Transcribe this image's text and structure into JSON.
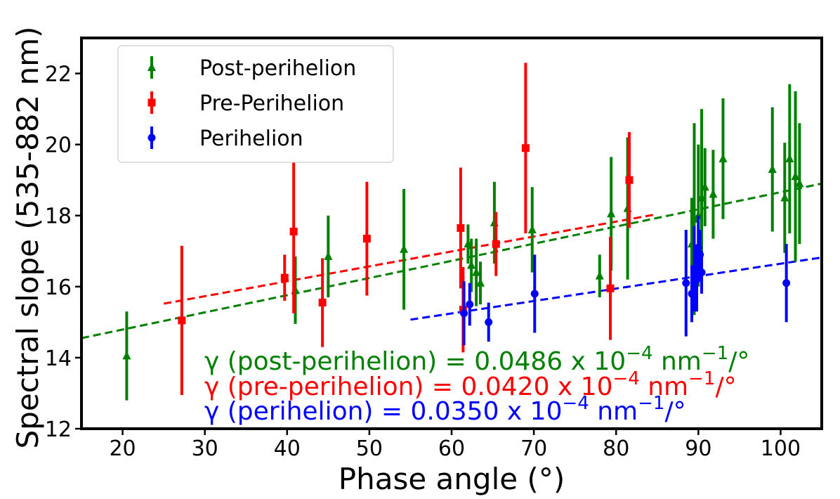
{
  "chart_data": {
    "type": "scatter",
    "xlabel": "Phase angle (°)",
    "ylabel": "Spectral slope (535-882 nm)",
    "xlim": [
      15,
      105
    ],
    "ylim": [
      12,
      23
    ],
    "x_ticks": [
      20,
      30,
      40,
      50,
      60,
      70,
      80,
      90,
      100
    ],
    "y_ticks": [
      12,
      14,
      16,
      18,
      20,
      22
    ],
    "legend_position": "upper-left",
    "series": [
      {
        "name": "Post-perihelion",
        "color": "#008000",
        "marker": "triangle",
        "points": [
          {
            "x": 20.5,
            "y": 14.05,
            "err": 1.25
          },
          {
            "x": 41.0,
            "y": 15.9,
            "err": 0.95
          },
          {
            "x": 45.0,
            "y": 16.85,
            "err": 1.15
          },
          {
            "x": 54.2,
            "y": 17.05,
            "err": 1.7
          },
          {
            "x": 62.0,
            "y": 17.2,
            "err": 0.55
          },
          {
            "x": 62.4,
            "y": 16.6,
            "err": 0.75
          },
          {
            "x": 63.0,
            "y": 16.4,
            "err": 0.95
          },
          {
            "x": 63.5,
            "y": 16.1,
            "err": 0.6
          },
          {
            "x": 65.2,
            "y": 17.8,
            "err": 1.15
          },
          {
            "x": 69.8,
            "y": 17.6,
            "err": 1.2
          },
          {
            "x": 78.0,
            "y": 16.3,
            "err": 0.6
          },
          {
            "x": 79.4,
            "y": 18.05,
            "err": 1.6
          },
          {
            "x": 81.4,
            "y": 18.2,
            "err": 2.0
          },
          {
            "x": 89.2,
            "y": 17.2,
            "err": 1.3
          },
          {
            "x": 89.5,
            "y": 17.9,
            "err": 2.7
          },
          {
            "x": 90.0,
            "y": 18.0,
            "err": 2.0
          },
          {
            "x": 90.4,
            "y": 18.5,
            "err": 2.5
          },
          {
            "x": 90.8,
            "y": 18.8,
            "err": 1.1
          },
          {
            "x": 91.8,
            "y": 18.6,
            "err": 1.25
          },
          {
            "x": 93.0,
            "y": 19.6,
            "err": 1.7
          },
          {
            "x": 99.0,
            "y": 19.3,
            "err": 1.75
          },
          {
            "x": 100.5,
            "y": 18.5,
            "err": 1.55
          },
          {
            "x": 101.1,
            "y": 19.6,
            "err": 2.1
          },
          {
            "x": 101.8,
            "y": 19.1,
            "err": 2.4
          },
          {
            "x": 102.3,
            "y": 18.9,
            "err": 1.7
          }
        ],
        "fit": {
          "x": [
            15,
            105
          ],
          "y": [
            14.55,
            18.9
          ]
        }
      },
      {
        "name": "Pre-Perihelion",
        "color": "#ff0000",
        "marker": "square",
        "points": [
          {
            "x": 27.2,
            "y": 15.05,
            "err": 2.1
          },
          {
            "x": 39.7,
            "y": 16.25,
            "err": 0.65
          },
          {
            "x": 40.8,
            "y": 17.55,
            "err": 2.3
          },
          {
            "x": 44.3,
            "y": 15.55,
            "err": 1.25
          },
          {
            "x": 49.7,
            "y": 17.35,
            "err": 1.6
          },
          {
            "x": 61.1,
            "y": 17.65,
            "err": 1.7
          },
          {
            "x": 61.4,
            "y": 15.35,
            "err": 1.2
          },
          {
            "x": 65.4,
            "y": 17.2,
            "err": 0.9
          },
          {
            "x": 69.0,
            "y": 19.9,
            "err": 2.4
          },
          {
            "x": 79.3,
            "y": 15.95,
            "err": 1.45
          },
          {
            "x": 81.6,
            "y": 19.0,
            "err": 1.35
          }
        ],
        "fit": {
          "x": [
            25,
            85
          ],
          "y": [
            15.52,
            18.04
          ]
        }
      },
      {
        "name": "Perihelion",
        "color": "#0000ff",
        "marker": "circle",
        "points": [
          {
            "x": 61.5,
            "y": 15.25,
            "err": 0.9
          },
          {
            "x": 62.2,
            "y": 15.5,
            "err": 0.6
          },
          {
            "x": 64.5,
            "y": 15.0,
            "err": 0.55
          },
          {
            "x": 70.1,
            "y": 15.8,
            "err": 1.1
          },
          {
            "x": 88.5,
            "y": 16.1,
            "err": 1.5
          },
          {
            "x": 89.2,
            "y": 15.8,
            "err": 0.8
          },
          {
            "x": 89.5,
            "y": 16.5,
            "err": 1.2
          },
          {
            "x": 89.8,
            "y": 16.2,
            "err": 0.9
          },
          {
            "x": 90.0,
            "y": 17.1,
            "err": 0.9
          },
          {
            "x": 90.2,
            "y": 16.9,
            "err": 0.7
          },
          {
            "x": 90.4,
            "y": 16.4,
            "err": 0.6
          },
          {
            "x": 100.7,
            "y": 16.1,
            "err": 1.1
          }
        ],
        "fit": {
          "x": [
            55,
            105
          ],
          "y": [
            15.07,
            16.82
          ]
        }
      }
    ],
    "annotations": [
      {
        "pre": "γ (post-perihelion) = 0.0486 x 10",
        "sup1": "−4",
        "mid": " nm",
        "sup2": "−1",
        "post": "/°",
        "color": "#008000"
      },
      {
        "pre": "γ (pre-perihelion) = 0.0420 x 10",
        "sup1": "−4",
        "mid": " nm",
        "sup2": "−1",
        "post": "/°",
        "color": "#ff0000"
      },
      {
        "pre": "γ (perihelion) = 0.0350 x 10",
        "sup1": "−4",
        "mid": " nm",
        "sup2": "−1",
        "post": "/°",
        "color": "#0000ff"
      }
    ]
  }
}
